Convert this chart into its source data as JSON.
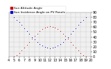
{
  "background_color": "#ffffff",
  "plot_bg_color": "#f0f0f0",
  "grid_color": "#bbbbbb",
  "xlim": [
    4,
    20
  ],
  "ylim": [
    0,
    90
  ],
  "x_ticks": [
    4,
    5,
    6,
    7,
    8,
    9,
    10,
    11,
    12,
    13,
    14,
    15,
    16,
    17,
    18,
    19,
    20
  ],
  "y_ticks": [
    0,
    10,
    20,
    30,
    40,
    50,
    60,
    70,
    80,
    90
  ],
  "series": [
    {
      "label": "Sun Altitude Angle",
      "color": "#cc0000",
      "x": [
        5.0,
        5.5,
        6.0,
        6.5,
        7.0,
        7.5,
        8.0,
        8.5,
        9.0,
        9.5,
        10.0,
        10.5,
        11.0,
        11.5,
        12.0,
        12.5,
        13.0,
        13.5,
        14.0,
        14.5,
        15.0,
        15.5,
        16.0,
        16.5,
        17.0,
        17.5,
        18.0,
        18.5,
        19.0
      ],
      "y": [
        0,
        3,
        7,
        12,
        18,
        24,
        30,
        36,
        42,
        47,
        52,
        56,
        59,
        61,
        62,
        61,
        59,
        56,
        52,
        47,
        42,
        36,
        30,
        24,
        18,
        12,
        7,
        3,
        0
      ]
    },
    {
      "label": "Sun Incidence Angle on PV Panels",
      "color": "#0000cc",
      "x": [
        5.0,
        5.5,
        6.0,
        6.5,
        7.0,
        7.5,
        8.0,
        8.5,
        9.0,
        9.5,
        10.0,
        10.5,
        11.0,
        11.5,
        12.0,
        12.5,
        13.0,
        13.5,
        14.0,
        14.5,
        15.0,
        15.5,
        16.0,
        16.5,
        17.0,
        17.5,
        18.0,
        18.5,
        19.0
      ],
      "y": [
        80,
        75,
        70,
        64,
        58,
        52,
        46,
        40,
        35,
        30,
        26,
        23,
        20,
        18,
        17,
        18,
        20,
        23,
        26,
        30,
        35,
        40,
        46,
        52,
        58,
        64,
        70,
        75,
        80
      ]
    }
  ],
  "legend_labels": [
    "Sun Altitude Angle",
    "Sun Incidence Angle on PV Panels"
  ],
  "legend_colors": [
    "#cc0000",
    "#0000cc"
  ],
  "tick_fontsize": 3.5,
  "legend_fontsize": 3.2,
  "dot_size": 0.5
}
